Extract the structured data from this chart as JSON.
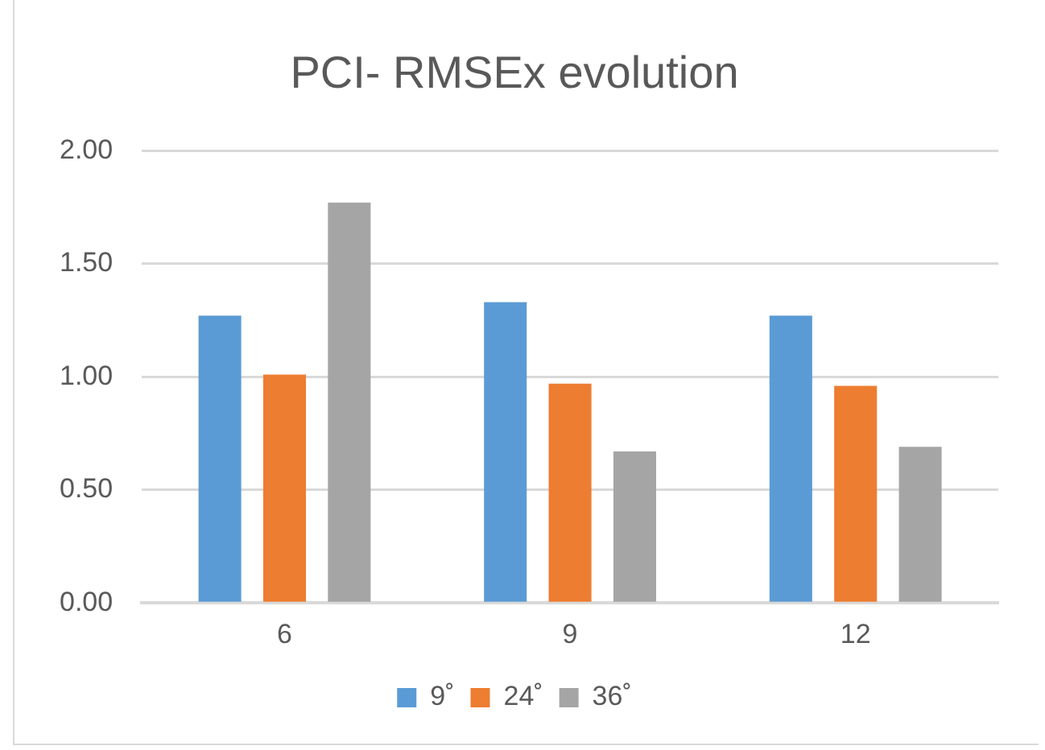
{
  "chart_data": {
    "type": "bar",
    "title": "PCI- RMSEx evolution",
    "categories": [
      "6",
      "9",
      "12"
    ],
    "series": [
      {
        "name": "9˚",
        "color": "#5b9bd5",
        "values": [
          1.27,
          1.33,
          1.27
        ]
      },
      {
        "name": "24˚",
        "color": "#ed7d31",
        "values": [
          1.01,
          0.97,
          0.96
        ]
      },
      {
        "name": "36˚",
        "color": "#a5a5a5",
        "values": [
          1.77,
          0.67,
          0.69
        ]
      }
    ],
    "ylim": [
      0,
      2
    ],
    "yticks": [
      {
        "value": 0,
        "label": "0.00"
      },
      {
        "value": 0.5,
        "label": "0.50"
      },
      {
        "value": 1,
        "label": "1.00"
      },
      {
        "value": 1.5,
        "label": "1.50"
      },
      {
        "value": 2,
        "label": "2.00"
      }
    ],
    "grid": "y",
    "legend": "bottom"
  }
}
